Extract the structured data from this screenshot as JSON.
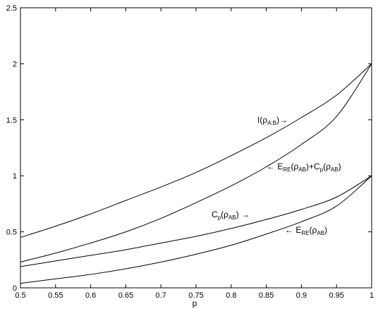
{
  "chart_data": {
    "type": "line",
    "xlabel": "p",
    "ylabel": "",
    "xlim": [
      0.5,
      1.0
    ],
    "ylim": [
      0,
      2.5
    ],
    "grid": false,
    "x_ticks": [
      "0.5",
      "0.55",
      "0.6",
      "0.65",
      "0.7",
      "0.75",
      "0.8",
      "0.85",
      "0.9",
      "0.95",
      "1"
    ],
    "y_ticks": [
      "0",
      "0.5",
      "1",
      "1.5",
      "2",
      "2.5"
    ],
    "x": [
      0.5,
      0.55,
      0.6,
      0.65,
      0.7,
      0.75,
      0.8,
      0.85,
      0.9,
      0.95,
      1.0
    ],
    "series": [
      {
        "name": "I(ρ_A:B)",
        "label_main": "I(ρ",
        "label_sub": "A:B",
        "label_tail": ")→",
        "values": [
          0.45,
          0.55,
          0.66,
          0.78,
          0.9,
          1.03,
          1.18,
          1.34,
          1.52,
          1.72,
          2.0
        ]
      },
      {
        "name": "E_RE(ρ_AB)+C_p(ρ_AB)",
        "label_main": "← E",
        "label_sub": "RE",
        "label_mid1": "(ρ",
        "label_sub2": "AB",
        "label_mid2": ")+C",
        "label_sub3": "p",
        "label_mid3": "(ρ",
        "label_sub4": "AB",
        "label_tail": ")",
        "values": [
          0.23,
          0.31,
          0.4,
          0.5,
          0.62,
          0.76,
          0.91,
          1.08,
          1.28,
          1.53,
          2.0
        ]
      },
      {
        "name": "C_p(ρ_AB)",
        "label_main": "C",
        "label_sub": "p",
        "label_mid1": "(ρ",
        "label_sub2": "AB",
        "label_tail": ") →",
        "values": [
          0.19,
          0.24,
          0.29,
          0.34,
          0.4,
          0.46,
          0.53,
          0.61,
          0.7,
          0.81,
          1.0
        ]
      },
      {
        "name": "E_RE(ρ_AB)",
        "label_main": "← E",
        "label_sub": "RE",
        "label_mid1": "(ρ",
        "label_sub2": "AB",
        "label_tail": ")",
        "values": [
          0.04,
          0.08,
          0.12,
          0.17,
          0.23,
          0.3,
          0.38,
          0.48,
          0.59,
          0.73,
          1.0
        ]
      }
    ]
  }
}
